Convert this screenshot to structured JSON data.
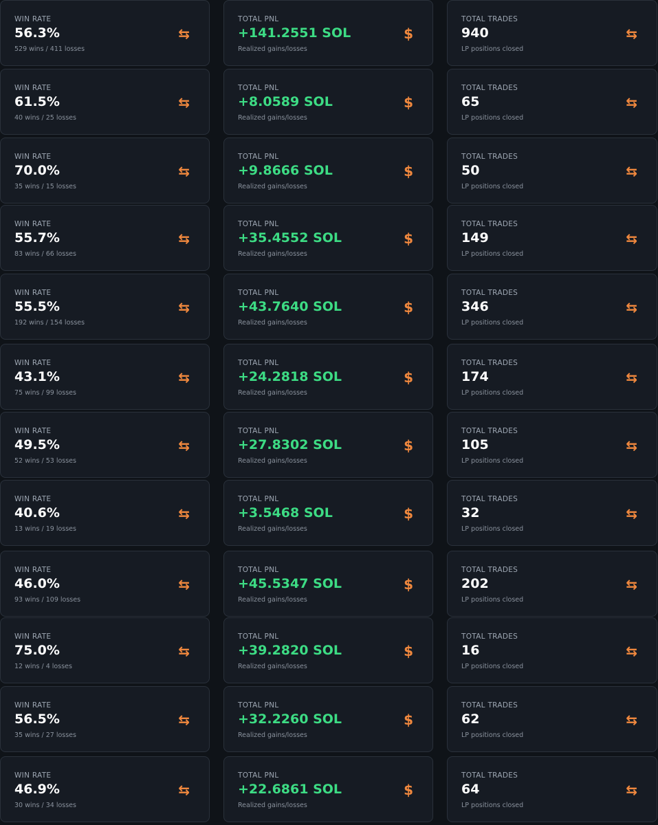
{
  "labels": {
    "win_rate": "WIN RATE",
    "total_pnl": "TOTAL PNL",
    "total_trades": "TOTAL TRADES",
    "pnl_sub": "Realized gains/losses",
    "trades_sub": "LP positions closed"
  },
  "icons": {
    "swap": "⇆",
    "dollar": "$"
  },
  "colors": {
    "pnl_green": "#3ddc84",
    "icon_orange": "#f0883e",
    "card_bg": "#161b23"
  },
  "rows": [
    {
      "win_rate": "56.3%",
      "win_sub": "529 wins / 411 losses",
      "pnl": "+141.2551 SOL",
      "trades": "940"
    },
    {
      "win_rate": "61.5%",
      "win_sub": "40 wins / 25 losses",
      "pnl": "+8.0589 SOL",
      "trades": "65"
    },
    {
      "win_rate": "70.0%",
      "win_sub": "35 wins / 15 losses",
      "pnl": "+9.8666 SOL",
      "trades": "50"
    },
    {
      "win_rate": "55.7%",
      "win_sub": "83 wins / 66 losses",
      "pnl": "+35.4552 SOL",
      "trades": "149"
    },
    {
      "win_rate": "55.5%",
      "win_sub": "192 wins / 154 losses",
      "pnl": "+43.7640 SOL",
      "trades": "346"
    },
    {
      "win_rate": "43.1%",
      "win_sub": "75 wins / 99 losses",
      "pnl": "+24.2818 SOL",
      "trades": "174"
    },
    {
      "win_rate": "49.5%",
      "win_sub": "52 wins / 53 losses",
      "pnl": "+27.8302 SOL",
      "trades": "105"
    },
    {
      "win_rate": "40.6%",
      "win_sub": "13 wins / 19 losses",
      "pnl": "+3.5468 SOL",
      "trades": "32"
    },
    {
      "win_rate": "46.0%",
      "win_sub": "93 wins / 109 losses",
      "pnl": "+45.5347 SOL",
      "trades": "202"
    },
    {
      "win_rate": "75.0%",
      "win_sub": "12 wins / 4 losses",
      "pnl": "+39.2820 SOL",
      "trades": "16"
    },
    {
      "win_rate": "56.5%",
      "win_sub": "35 wins / 27 losses",
      "pnl": "+32.2260 SOL",
      "trades": "62"
    },
    {
      "win_rate": "46.9%",
      "win_sub": "30 wins / 34 losses",
      "pnl": "+22.6861 SOL",
      "trades": "64"
    }
  ]
}
